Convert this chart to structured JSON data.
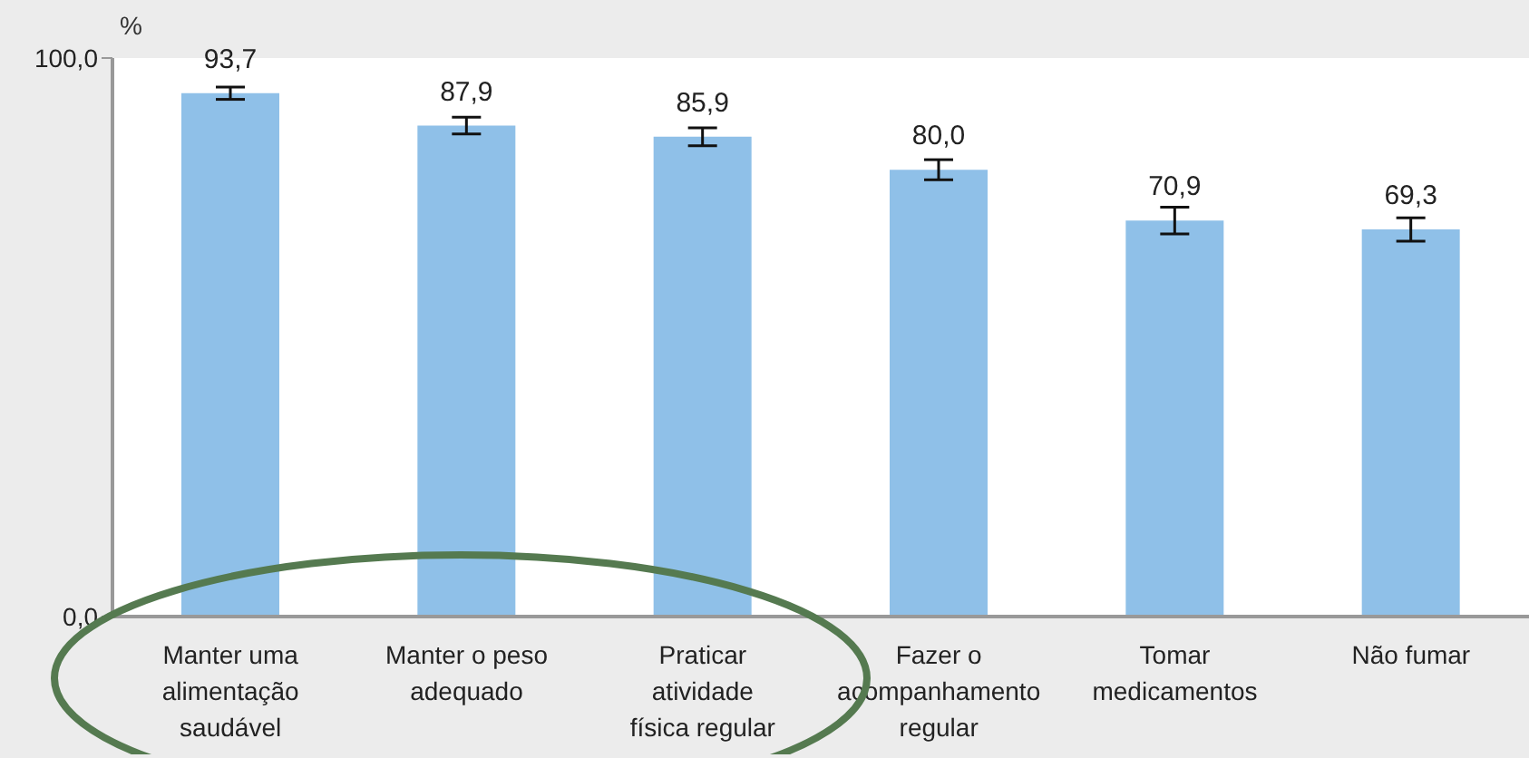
{
  "chart_data": {
    "type": "bar",
    "ylabel": "%",
    "categories": [
      "Manter uma alimentação saudável",
      "Manter o peso adequado",
      "Praticar atividade física regular",
      "Fazer o acompanhamento regular",
      "Tomar medicamentos",
      "Não fumar"
    ],
    "values": [
      93.7,
      87.9,
      85.9,
      80.0,
      70.9,
      69.3
    ],
    "value_labels": [
      "93,7",
      "87,9",
      "85,9",
      "80,0",
      "70,9",
      "69,3"
    ],
    "errors": [
      1.1,
      1.5,
      1.6,
      1.8,
      2.4,
      2.1
    ],
    "color": "#8fc0e8",
    "ylim": [
      0,
      100
    ],
    "yticks": [
      {
        "value": 0,
        "label": "0,0"
      },
      {
        "value": 100,
        "label": "100,0"
      }
    ],
    "grid": false
  }
}
